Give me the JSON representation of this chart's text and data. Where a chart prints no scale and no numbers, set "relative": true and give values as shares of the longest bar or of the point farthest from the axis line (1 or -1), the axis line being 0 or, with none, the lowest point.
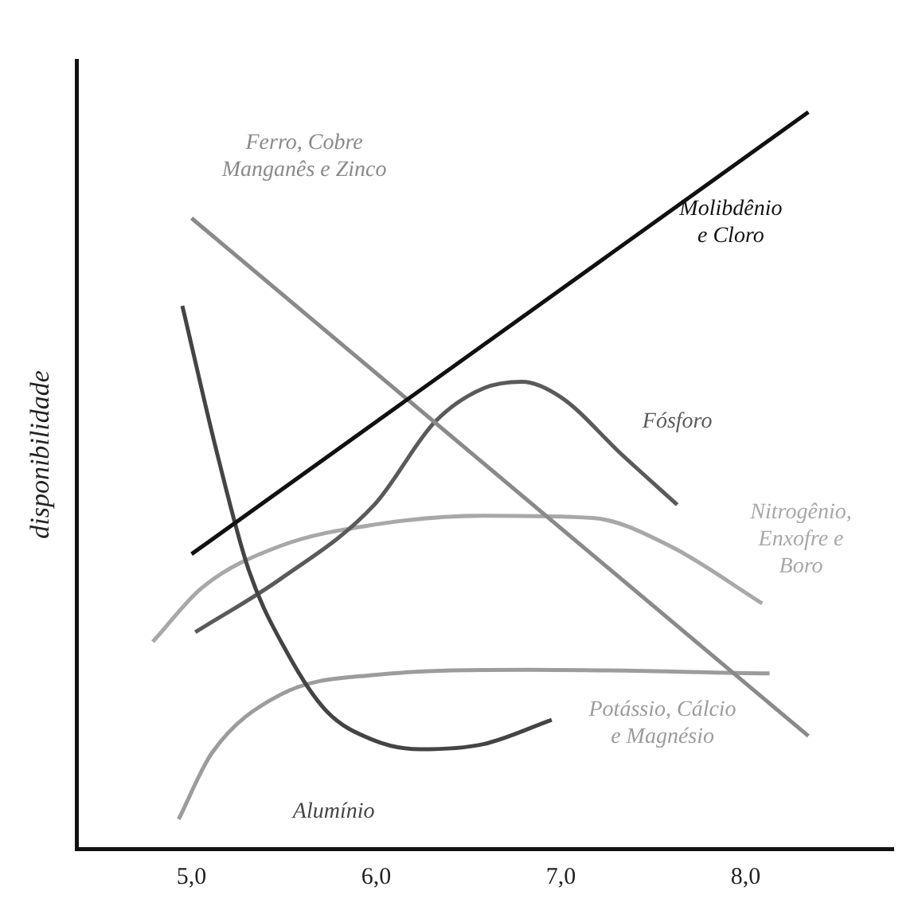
{
  "chart_data": {
    "type": "line",
    "ylabel": "disponibilidade",
    "relative": true,
    "xlim": [
      4.38,
      8.8
    ],
    "xticks": [
      {
        "value": 5,
        "label": "5,0"
      },
      {
        "value": 6,
        "label": "6,0"
      },
      {
        "value": 7,
        "label": "7,0"
      },
      {
        "value": 8,
        "label": "8,0"
      }
    ],
    "grid": false,
    "legend": false,
    "marker": "none",
    "line_style": "solid",
    "series": [
      {
        "name": "Molibdênio e Cloro",
        "color": "#111111",
        "x": [
          5.0,
          8.34
        ],
        "values": [
          0.4,
          1.0
        ]
      },
      {
        "name": "Ferro, Cobre Manganês e Zinco",
        "color": "#8a8a8a",
        "x": [
          5.0,
          8.34
        ],
        "values": [
          0.856,
          0.153
        ]
      },
      {
        "name": "Alumínio",
        "color": "#444444",
        "x": [
          4.95,
          5.14,
          5.31,
          5.52,
          5.73,
          5.98,
          6.24,
          6.58,
          6.95
        ],
        "values": [
          0.737,
          0.535,
          0.378,
          0.265,
          0.187,
          0.148,
          0.135,
          0.142,
          0.175
        ]
      },
      {
        "name": "Fósforo",
        "color": "#5a5a5a",
        "x": [
          5.02,
          5.48,
          5.99,
          6.32,
          6.58,
          6.79,
          7.0,
          7.33,
          7.63
        ],
        "values": [
          0.294,
          0.366,
          0.467,
          0.58,
          0.625,
          0.634,
          0.613,
          0.535,
          0.467
        ]
      },
      {
        "name": "Nitrogênio, Enxofre e Boro",
        "color": "#a8a8a8",
        "x": [
          4.79,
          5.06,
          5.48,
          5.99,
          6.58,
          7.17,
          7.59,
          8.09
        ],
        "values": [
          0.281,
          0.355,
          0.411,
          0.44,
          0.452,
          0.449,
          0.411,
          0.333
        ]
      },
      {
        "name": "Potássio, Cálcio e Magnésio",
        "color": "#9c9c9c",
        "x": [
          4.93,
          5.11,
          5.48,
          5.99,
          6.83,
          8.13
        ],
        "values": [
          0.04,
          0.13,
          0.209,
          0.236,
          0.243,
          0.238
        ]
      }
    ]
  }
}
